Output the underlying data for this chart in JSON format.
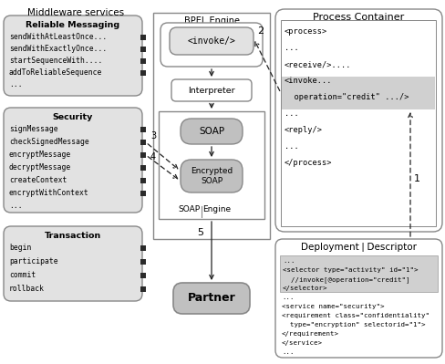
{
  "bg_color": "#ffffff",
  "light_gray": "#e2e2e2",
  "mid_gray": "#c0c0c0",
  "edge_color": "#888888",
  "dark_sq": "#2a2a2a",
  "middleware_label": "Middleware services",
  "rm_title": "Reliable Messaging",
  "rm_items": [
    "sendWithAtLeastOnce...",
    "sendWithExactlyOnce...",
    "startSequenceWith....",
    "addToReliableSequence",
    "..."
  ],
  "sec_title": "Security",
  "sec_items": [
    "signMessage",
    "checkSignedMessage",
    "encryptMessage",
    "decryptMessage",
    "createContext",
    "encryptWithContext",
    "..."
  ],
  "tx_title": "Transaction",
  "tx_items": [
    "begin",
    "participate",
    "commit",
    "rollback"
  ],
  "bpel_label": "BPEL Engine",
  "invoke_label": "<invoke/>",
  "interp_label": "Interpreter",
  "soap_label": "SOAP",
  "enc_soap_label": "Encrypted\nSOAP",
  "soap_engine_label": "SOAP",
  "soap_engine_label2": "Engine",
  "partner_label": "Partner",
  "pc_label": "Process Container",
  "process_lines": [
    "<process>",
    "...",
    "<receive/>....",
    "<invoke...",
    "  operation=\"credit\" .../>",
    "...",
    "<reply/>",
    "...",
    "</process>"
  ],
  "dd_label1": "Deployment",
  "dd_label2": "Descriptor",
  "dd_sel_lines": [
    "...",
    "<selector type=\"activity\" id=\"1\">",
    "  //invoke[@operation=\"credit\"]",
    "</selector>"
  ],
  "dd_svc_lines": [
    "...",
    "<service name=\"security\">",
    "<requirement class=\"confidentiality\"",
    "  type=\"encryption\" selectorid=\"1\">",
    "</requirement>",
    "</service>",
    "..."
  ]
}
